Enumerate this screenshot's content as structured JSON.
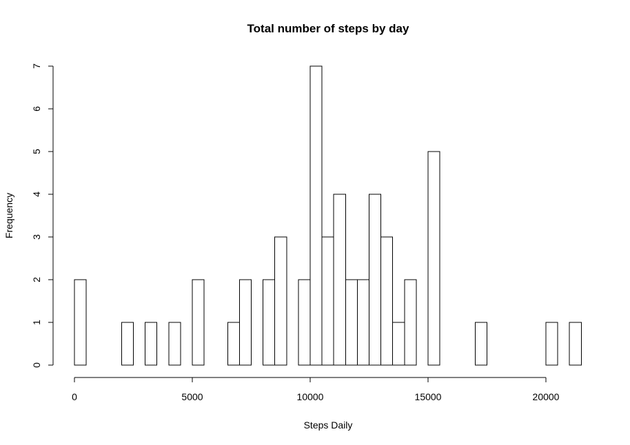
{
  "chart_data": {
    "type": "bar",
    "title": "Total number of steps by day",
    "xlabel": "Steps Daily",
    "ylabel": "Frequency",
    "bin_width": 500,
    "bin_starts": [
      0,
      500,
      1000,
      1500,
      2000,
      2500,
      3000,
      3500,
      4000,
      4500,
      5000,
      5500,
      6000,
      6500,
      7000,
      7500,
      8000,
      8500,
      9000,
      9500,
      10000,
      10500,
      11000,
      11500,
      12000,
      12500,
      13000,
      13500,
      14000,
      14500,
      15000,
      15500,
      16000,
      16500,
      17000,
      17500,
      18000,
      18500,
      19000,
      19500,
      20000,
      20500,
      21000
    ],
    "values": [
      2,
      0,
      0,
      0,
      1,
      0,
      1,
      0,
      1,
      0,
      2,
      0,
      0,
      1,
      2,
      0,
      2,
      3,
      0,
      2,
      7,
      3,
      4,
      2,
      2,
      4,
      3,
      1,
      2,
      0,
      5,
      0,
      0,
      0,
      1,
      0,
      0,
      0,
      0,
      0,
      1,
      0,
      1
    ],
    "xlim": [
      0,
      21500
    ],
    "ylim": [
      0,
      7
    ],
    "x_ticks": [
      0,
      5000,
      10000,
      15000,
      20000
    ],
    "x_tick_labels": [
      "0",
      "5000",
      "10000",
      "15000",
      "20000"
    ],
    "y_ticks": [
      0,
      1,
      2,
      3,
      4,
      5,
      6,
      7
    ],
    "y_tick_labels": [
      "0",
      "1",
      "2",
      "3",
      "4",
      "5",
      "6",
      "7"
    ],
    "grid": false,
    "bar_fill": "#ffffff",
    "bar_stroke": "#000000"
  }
}
